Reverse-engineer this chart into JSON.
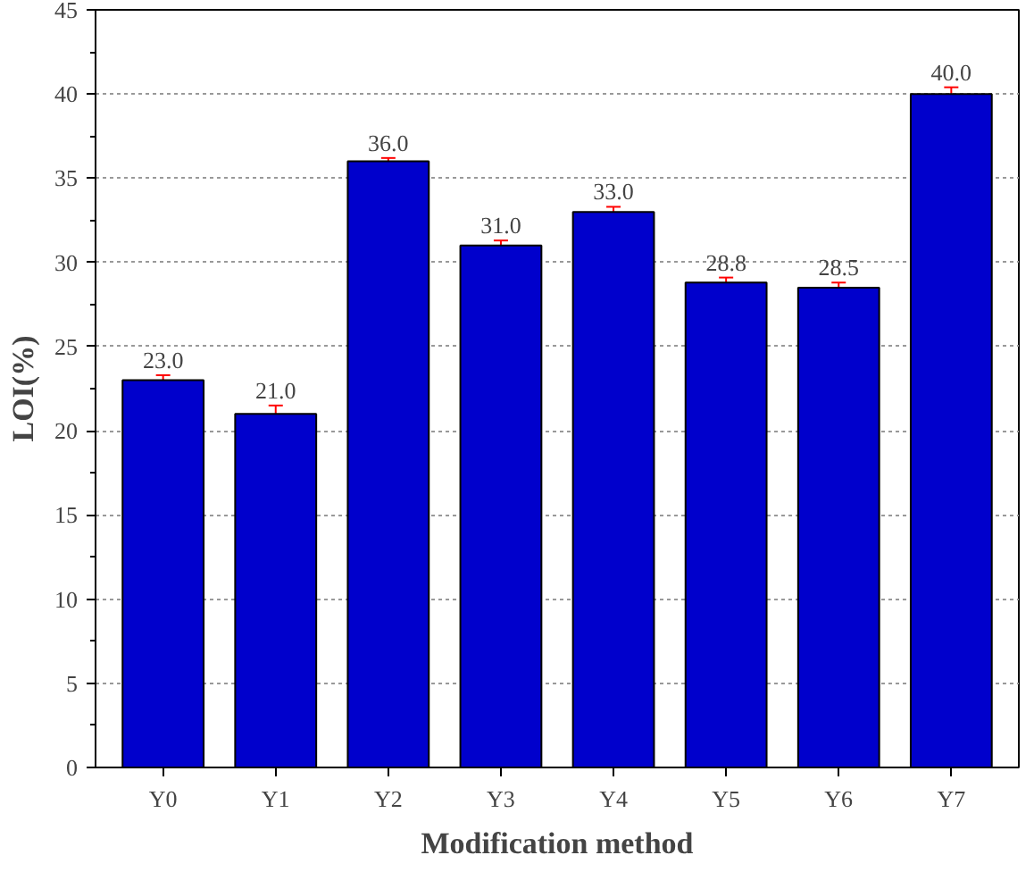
{
  "chart_data": {
    "type": "bar",
    "xlabel": "Modification method",
    "ylabel": "LOI(%)",
    "categories": [
      "Y0",
      "Y1",
      "Y2",
      "Y3",
      "Y4",
      "Y5",
      "Y6",
      "Y7"
    ],
    "values": [
      23.0,
      21.0,
      36.0,
      31.0,
      33.0,
      28.8,
      28.5,
      40.0
    ],
    "errors": [
      0.3,
      0.5,
      0.2,
      0.3,
      0.3,
      0.3,
      0.3,
      0.4
    ],
    "value_labels": [
      "23.0",
      "21.0",
      "36.0",
      "31.0",
      "33.0",
      "28.8",
      "28.5",
      "40.0"
    ],
    "color": "#0000cc",
    "ylim": [
      0,
      45
    ],
    "yticks": [
      0,
      5,
      10,
      15,
      20,
      25,
      30,
      35,
      40,
      45
    ],
    "grid": "y"
  }
}
